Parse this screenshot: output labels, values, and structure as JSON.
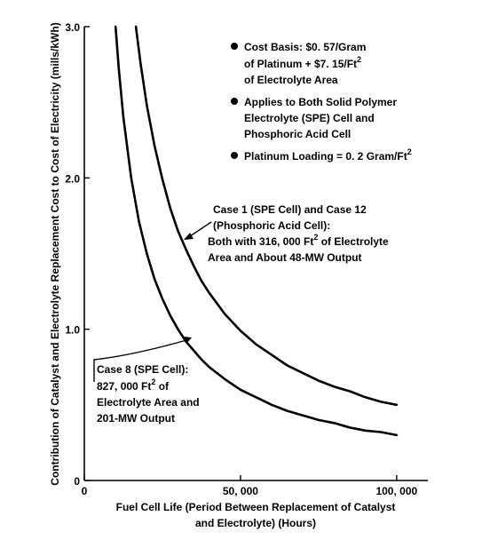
{
  "chart_data": {
    "type": "line",
    "xlabel_lines": [
      "Fuel Cell Life (Period Between Replacement of Catalyst",
      "and Electrolyte) (Hours)"
    ],
    "ylabel": "Contribution of Catalyst and Electrolyte Replacement Cost to Cost of Electricity (mills/kWh)",
    "xlim": [
      0,
      110000
    ],
    "ylim": [
      0,
      3.0
    ],
    "x_ticks": [
      {
        "value": 0,
        "label": "0"
      },
      {
        "value": 50000,
        "label": "50, 000"
      },
      {
        "value": 100000,
        "label": "100, 000"
      }
    ],
    "y_ticks": [
      {
        "value": 0,
        "label": "0"
      },
      {
        "value": 1.0,
        "label": "1.0"
      },
      {
        "value": 2.0,
        "label": "2.0"
      },
      {
        "value": 3.0,
        "label": "3.0"
      }
    ],
    "grid": false,
    "legend": "none",
    "series": [
      {
        "name": "Case 1 (SPE Cell) and Case 12 (Phosphoric Acid Cell)",
        "x": [
          16500,
          18000,
          20000,
          22500,
          25000,
          27500,
          30000,
          32500,
          35000,
          37500,
          40000,
          42500,
          45000,
          50000,
          55000,
          60000,
          65000,
          70000,
          75000,
          80000,
          85000,
          90000,
          95000,
          100000
        ],
        "y": [
          3.0,
          2.76,
          2.48,
          2.21,
          1.99,
          1.8,
          1.65,
          1.53,
          1.42,
          1.32,
          1.24,
          1.17,
          1.1,
          0.99,
          0.9,
          0.83,
          0.76,
          0.71,
          0.66,
          0.62,
          0.59,
          0.55,
          0.52,
          0.5
        ]
      },
      {
        "name": "Case 8 (SPE Cell)",
        "x": [
          10000,
          11000,
          12500,
          15000,
          17500,
          20000,
          22500,
          25000,
          27500,
          30000,
          32500,
          35000,
          37500,
          40000,
          45000,
          50000,
          55000,
          60000,
          65000,
          70000,
          75000,
          80000,
          85000,
          90000,
          95000,
          100000
        ],
        "y": [
          3.0,
          2.73,
          2.4,
          2.0,
          1.71,
          1.5,
          1.33,
          1.2,
          1.09,
          1.0,
          0.92,
          0.86,
          0.8,
          0.75,
          0.67,
          0.6,
          0.55,
          0.5,
          0.46,
          0.43,
          0.4,
          0.38,
          0.35,
          0.33,
          0.32,
          0.3
        ]
      }
    ],
    "annotations": {
      "bullets": [
        {
          "lines": [
            "Cost Basis:  $0. 57/Gram",
            "of Platinum + $7. 15/Ft",
            "of Electrolyte Area"
          ],
          "superscript_line": 1,
          "superscript": "2"
        },
        {
          "lines": [
            "Applies to Both Solid Polymer",
            "Electrolyte (SPE) Cell and",
            "Phosphoric Acid Cell"
          ]
        },
        {
          "lines": [
            "Platinum Loading = 0. 2 Gram/Ft"
          ],
          "superscript_line": 0,
          "superscript": "2"
        }
      ],
      "case_upper": {
        "lines": [
          "Case 1 (SPE Cell) and Case 12",
          "(Phosphoric Acid Cell):",
          "Both with 316, 000 Ft",
          "Area and About 48-MW Output"
        ],
        "line2_sup": "2",
        "line2_tail": " of Electrolyte"
      },
      "case_lower": {
        "lines": [
          "Case 8 (SPE Cell):",
          "827, 000 Ft",
          "Electrolyte Area and",
          "201-MW Output"
        ],
        "line1_sup": "2",
        "line1_tail": " of"
      }
    }
  }
}
